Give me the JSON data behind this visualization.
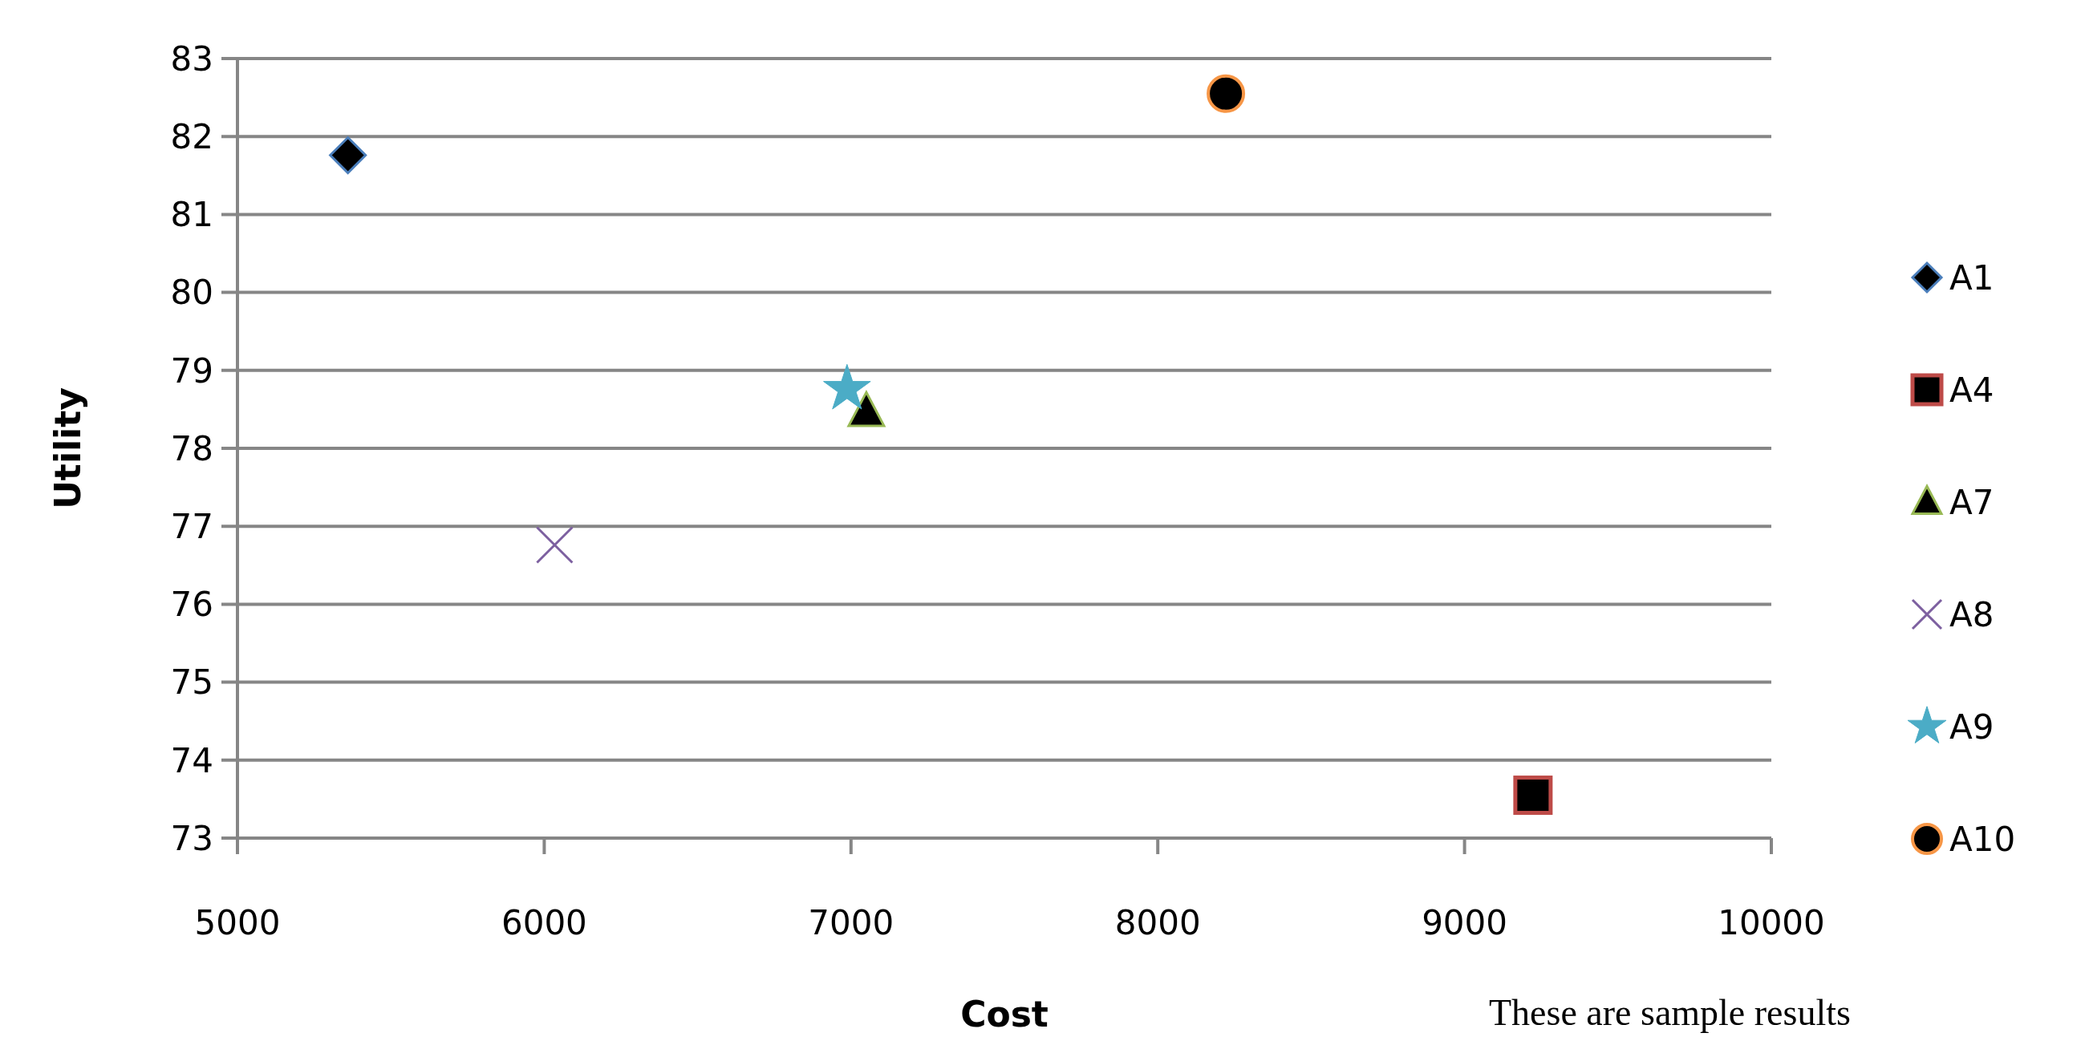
{
  "chart_data": {
    "type": "scatter",
    "xlabel": "Cost",
    "ylabel": "Utility",
    "xlim": [
      5000,
      10000
    ],
    "xticks": [
      5000,
      6000,
      7000,
      8000,
      9000,
      10000
    ],
    "ylim": [
      73,
      83
    ],
    "yticks": [
      73,
      74,
      75,
      76,
      77,
      78,
      79,
      80,
      81,
      82,
      83
    ],
    "grid": "y",
    "legend": "right",
    "annotations": [
      "These are sample results"
    ],
    "series": [
      {
        "name": "A1",
        "color": "#4a7ebb",
        "marker": "diamond",
        "x": [
          5360
        ],
        "values": [
          81.76
        ]
      },
      {
        "name": "A4",
        "color": "#be4b48",
        "marker": "square",
        "x": [
          9223
        ],
        "values": [
          73.55
        ]
      },
      {
        "name": "A7",
        "color": "#98b954",
        "marker": "triangle",
        "x": [
          7050
        ],
        "values": [
          78.47
        ]
      },
      {
        "name": "A8",
        "color": "#7d60a0",
        "marker": "cross",
        "x": [
          6034
        ],
        "values": [
          76.76
        ]
      },
      {
        "name": "A9",
        "color": "#4bacc6",
        "marker": "star",
        "x": [
          6987
        ],
        "values": [
          78.76
        ]
      },
      {
        "name": "A10",
        "color": "#f79646",
        "marker": "circle",
        "x": [
          8222
        ],
        "values": [
          82.55
        ]
      }
    ]
  }
}
